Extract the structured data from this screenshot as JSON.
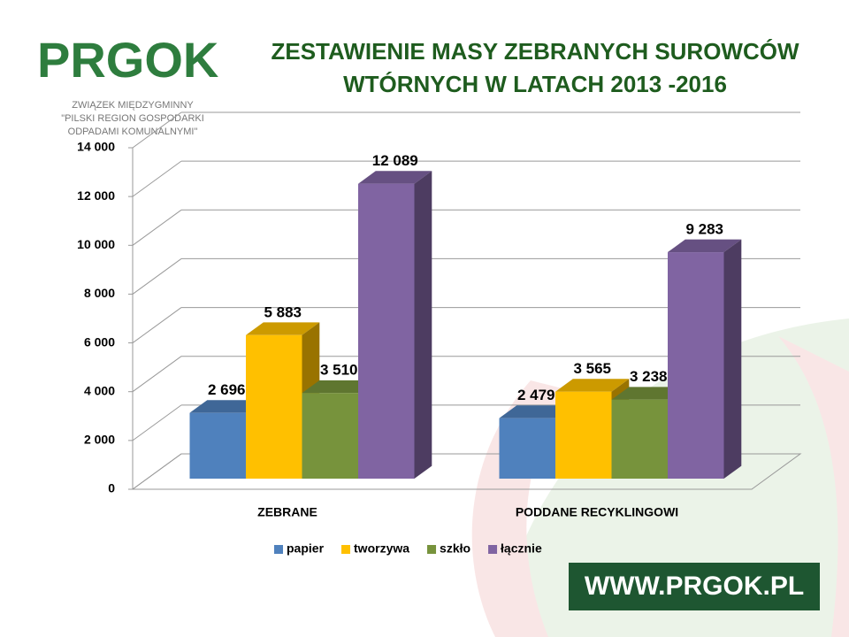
{
  "logo": {
    "name": "PRGOK",
    "lines": [
      "ZWIĄZEK MIĘDZYGMINNY",
      "\"PILSKI REGION GOSPODARKI",
      "ODPADAMI KOMUNALNYMI\""
    ]
  },
  "footer": "WWW.PRGOK.PL",
  "chart_data": {
    "type": "bar3d",
    "title": [
      "ZESTAWIENIE MASY ZEBRANYCH SUROWCÓW",
      "WTÓRNYCH W LATACH 2013 -2016"
    ],
    "categories": [
      "ZEBRANE",
      "PODDANE RECYKLINGOWI"
    ],
    "series": [
      {
        "name": "papier",
        "color": "#4f81bd",
        "values": [
          2696,
          2479
        ],
        "value_labels": [
          "2 696",
          "2 479"
        ]
      },
      {
        "name": "tworzywa",
        "color": "#ffc000",
        "values": [
          5883,
          3565
        ],
        "value_labels": [
          "5 883",
          "3 565"
        ]
      },
      {
        "name": "szkło",
        "color": "#77933c",
        "values": [
          3510,
          3238
        ],
        "value_labels": [
          "3 510",
          "3 238"
        ]
      },
      {
        "name": "łącznie",
        "color": "#8064a2",
        "values": [
          12089,
          9283
        ],
        "value_labels": [
          "12 089",
          "9 283"
        ]
      }
    ],
    "ylim": [
      0,
      14000
    ],
    "yticks": [
      0,
      {
        "value": 2000,
        "label": "2 000"
      },
      {
        "value": 4000,
        "label": "4 000"
      },
      {
        "value": 6000,
        "label": "6 000"
      },
      {
        "value": 8000,
        "label": "8 000"
      },
      {
        "value": 10000,
        "label": "10 000"
      },
      {
        "value": 12000,
        "label": "12 000"
      },
      {
        "value": 14000,
        "label": "14 000"
      }
    ],
    "grid": true,
    "legend": "bottom"
  }
}
